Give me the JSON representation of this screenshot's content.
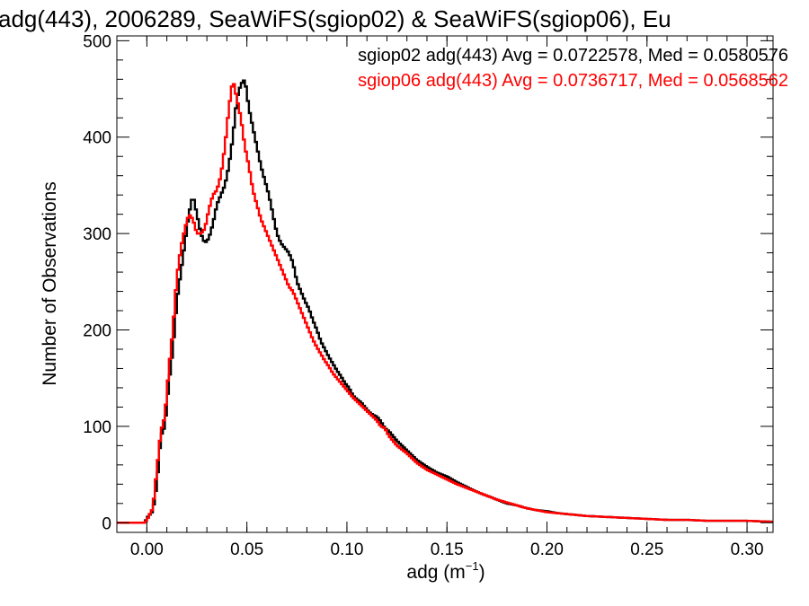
{
  "chart_data": {
    "type": "histogram",
    "title": "adg(443), 2006289, SeaWiFS(sgiop02) & SeaWiFS(sgiop06), Eu",
    "xlabel_main": "adg (m",
    "xlabel_sup": "−1",
    "xlabel_end": ")",
    "ylabel": "Number of Observations",
    "xlim": [
      -0.015,
      0.313
    ],
    "ylim": [
      -10,
      505
    ],
    "xticks": [
      0.0,
      0.05,
      0.1,
      0.15,
      0.2,
      0.25,
      0.3
    ],
    "xtick_labels": [
      "0.00",
      "0.05",
      "0.10",
      "0.15",
      "0.20",
      "0.25",
      "0.30"
    ],
    "yticks": [
      0,
      100,
      200,
      300,
      400,
      500
    ],
    "ytick_labels": [
      "0",
      "100",
      "200",
      "300",
      "400",
      "500"
    ],
    "bin_width": 0.001,
    "grid": false,
    "legend_position": "top-right",
    "series": [
      {
        "name": "sgiop02 adg(443) Avg = 0.0722578, Med = 0.0580576",
        "color": "#000000",
        "points": [
          [
            -0.015,
            0
          ],
          [
            -0.001,
            0
          ],
          [
            0.0,
            5
          ],
          [
            0.003,
            12
          ],
          [
            0.005,
            40
          ],
          [
            0.007,
            90
          ],
          [
            0.009,
            100
          ],
          [
            0.011,
            145
          ],
          [
            0.013,
            180
          ],
          [
            0.015,
            230
          ],
          [
            0.017,
            260
          ],
          [
            0.019,
            290
          ],
          [
            0.021,
            320
          ],
          [
            0.023,
            340
          ],
          [
            0.025,
            320
          ],
          [
            0.027,
            300
          ],
          [
            0.029,
            290
          ],
          [
            0.031,
            295
          ],
          [
            0.033,
            310
          ],
          [
            0.035,
            330
          ],
          [
            0.037,
            340
          ],
          [
            0.039,
            350
          ],
          [
            0.041,
            370
          ],
          [
            0.043,
            400
          ],
          [
            0.045,
            440
          ],
          [
            0.047,
            455
          ],
          [
            0.049,
            460
          ],
          [
            0.051,
            430
          ],
          [
            0.053,
            410
          ],
          [
            0.055,
            390
          ],
          [
            0.057,
            370
          ],
          [
            0.059,
            355
          ],
          [
            0.061,
            340
          ],
          [
            0.063,
            320
          ],
          [
            0.065,
            300
          ],
          [
            0.067,
            290
          ],
          [
            0.069,
            285
          ],
          [
            0.071,
            280
          ],
          [
            0.073,
            270
          ],
          [
            0.075,
            250
          ],
          [
            0.077,
            240
          ],
          [
            0.079,
            230
          ],
          [
            0.081,
            222
          ],
          [
            0.083,
            210
          ],
          [
            0.085,
            200
          ],
          [
            0.087,
            188
          ],
          [
            0.089,
            180
          ],
          [
            0.091,
            172
          ],
          [
            0.093,
            165
          ],
          [
            0.095,
            158
          ],
          [
            0.097,
            152
          ],
          [
            0.099,
            145
          ],
          [
            0.101,
            140
          ],
          [
            0.103,
            132
          ],
          [
            0.105,
            128
          ],
          [
            0.107,
            125
          ],
          [
            0.109,
            120
          ],
          [
            0.111,
            115
          ],
          [
            0.113,
            112
          ],
          [
            0.115,
            110
          ],
          [
            0.117,
            105
          ],
          [
            0.119,
            98
          ],
          [
            0.121,
            95
          ],
          [
            0.125,
            85
          ],
          [
            0.13,
            75
          ],
          [
            0.135,
            65
          ],
          [
            0.14,
            58
          ],
          [
            0.145,
            52
          ],
          [
            0.15,
            48
          ],
          [
            0.155,
            42
          ],
          [
            0.16,
            37
          ],
          [
            0.165,
            32
          ],
          [
            0.17,
            28
          ],
          [
            0.175,
            24
          ],
          [
            0.18,
            20
          ],
          [
            0.185,
            18
          ],
          [
            0.19,
            15
          ],
          [
            0.195,
            13
          ],
          [
            0.2,
            12
          ],
          [
            0.205,
            10
          ],
          [
            0.21,
            9
          ],
          [
            0.215,
            8
          ],
          [
            0.22,
            7
          ],
          [
            0.23,
            6
          ],
          [
            0.24,
            5
          ],
          [
            0.25,
            4
          ],
          [
            0.26,
            3
          ],
          [
            0.27,
            3
          ],
          [
            0.28,
            2
          ],
          [
            0.29,
            2
          ],
          [
            0.3,
            2
          ],
          [
            0.313,
            1
          ]
        ]
      },
      {
        "name": "sgiop06 adg(443) Avg = 0.0736717, Med = 0.0568562",
        "color": "#ff0000",
        "points": [
          [
            -0.015,
            0
          ],
          [
            -0.001,
            0
          ],
          [
            0.0,
            3
          ],
          [
            0.003,
            15
          ],
          [
            0.005,
            55
          ],
          [
            0.007,
            95
          ],
          [
            0.009,
            110
          ],
          [
            0.011,
            160
          ],
          [
            0.013,
            200
          ],
          [
            0.015,
            255
          ],
          [
            0.017,
            285
          ],
          [
            0.019,
            305
          ],
          [
            0.021,
            320
          ],
          [
            0.023,
            315
          ],
          [
            0.025,
            300
          ],
          [
            0.027,
            300
          ],
          [
            0.029,
            305
          ],
          [
            0.031,
            325
          ],
          [
            0.033,
            340
          ],
          [
            0.035,
            345
          ],
          [
            0.037,
            360
          ],
          [
            0.039,
            390
          ],
          [
            0.041,
            430
          ],
          [
            0.043,
            460
          ],
          [
            0.045,
            440
          ],
          [
            0.047,
            420
          ],
          [
            0.049,
            390
          ],
          [
            0.051,
            370
          ],
          [
            0.053,
            345
          ],
          [
            0.055,
            330
          ],
          [
            0.057,
            315
          ],
          [
            0.059,
            305
          ],
          [
            0.061,
            295
          ],
          [
            0.063,
            285
          ],
          [
            0.065,
            275
          ],
          [
            0.067,
            265
          ],
          [
            0.069,
            255
          ],
          [
            0.071,
            245
          ],
          [
            0.073,
            240
          ],
          [
            0.075,
            230
          ],
          [
            0.077,
            220
          ],
          [
            0.079,
            210
          ],
          [
            0.081,
            200
          ],
          [
            0.083,
            190
          ],
          [
            0.085,
            182
          ],
          [
            0.087,
            175
          ],
          [
            0.089,
            168
          ],
          [
            0.091,
            162
          ],
          [
            0.093,
            155
          ],
          [
            0.095,
            150
          ],
          [
            0.097,
            145
          ],
          [
            0.099,
            140
          ],
          [
            0.101,
            135
          ],
          [
            0.103,
            130
          ],
          [
            0.105,
            126
          ],
          [
            0.107,
            122
          ],
          [
            0.109,
            118
          ],
          [
            0.111,
            114
          ],
          [
            0.113,
            110
          ],
          [
            0.115,
            106
          ],
          [
            0.117,
            100
          ],
          [
            0.119,
            98
          ],
          [
            0.121,
            90
          ],
          [
            0.125,
            80
          ],
          [
            0.13,
            72
          ],
          [
            0.135,
            62
          ],
          [
            0.14,
            55
          ],
          [
            0.145,
            50
          ],
          [
            0.15,
            45
          ],
          [
            0.155,
            40
          ],
          [
            0.16,
            36
          ],
          [
            0.165,
            32
          ],
          [
            0.17,
            28
          ],
          [
            0.175,
            24
          ],
          [
            0.18,
            21
          ],
          [
            0.185,
            18
          ],
          [
            0.19,
            15
          ],
          [
            0.195,
            13
          ],
          [
            0.2,
            11
          ],
          [
            0.205,
            10
          ],
          [
            0.21,
            9
          ],
          [
            0.215,
            8
          ],
          [
            0.22,
            7
          ],
          [
            0.23,
            6
          ],
          [
            0.24,
            5
          ],
          [
            0.25,
            4
          ],
          [
            0.26,
            3
          ],
          [
            0.27,
            3
          ],
          [
            0.28,
            2
          ],
          [
            0.29,
            2
          ],
          [
            0.3,
            2
          ],
          [
            0.313,
            1
          ]
        ]
      }
    ]
  }
}
